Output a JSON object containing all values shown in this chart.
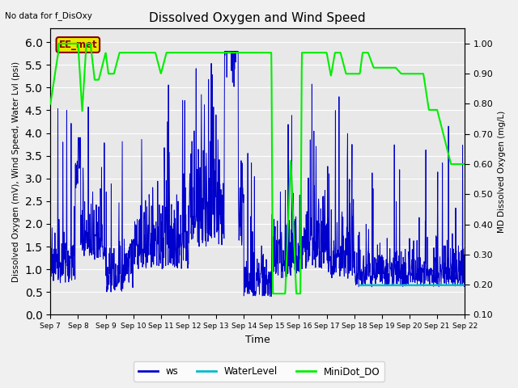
{
  "title": "Dissolved Oxygen and Wind Speed",
  "top_left_text": "No data for f_DisOxy",
  "xlabel": "Time",
  "ylabel_left": "Dissolved Oxygen (mV), Wind Speed, Water Lvl (psi)",
  "ylabel_right": "MD Dissolved Oxygen (mg/L)",
  "ylim_left": [
    0.0,
    6.3
  ],
  "ylim_right": [
    0.1,
    1.05
  ],
  "yticks_left": [
    0.0,
    0.5,
    1.0,
    1.5,
    2.0,
    2.5,
    3.0,
    3.5,
    4.0,
    4.5,
    5.0,
    5.5,
    6.0
  ],
  "yticks_right_major": [
    0.1,
    0.2,
    0.3,
    0.4,
    0.5,
    0.6,
    0.7,
    0.8,
    0.9,
    1.0
  ],
  "x_tick_labels": [
    "Sep 7",
    "Sep 8",
    "Sep 9",
    "Sep 10",
    "Sep 11",
    "Sep 12",
    "Sep 13",
    "Sep 14",
    "Sep 15",
    "Sep 16",
    "Sep 17",
    "Sep 18",
    "Sep 19",
    "Sep 20",
    "Sep 21",
    "Sep 22"
  ],
  "ws_color": "#0000cc",
  "water_level_color": "#00bbcc",
  "minidot_color": "#00ee00",
  "legend_labels": [
    "ws",
    "WaterLevel",
    "MiniDot_DO"
  ],
  "ee_met_label": "EE_met",
  "ee_met_box_color": "#e8e800",
  "ee_met_text_color": "#880000",
  "plot_bg_color": "#e8e8e8",
  "fig_bg_color": "#f0f0f0",
  "grid_color": "#ffffff"
}
